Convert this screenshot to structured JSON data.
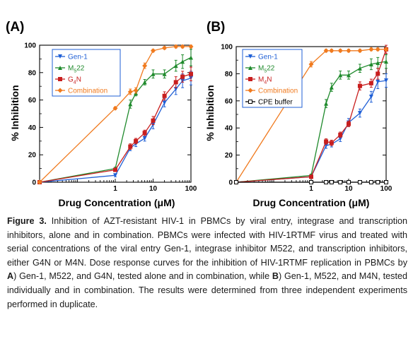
{
  "colors": {
    "gen1": "#1f5fd6",
    "m522": "#1f8a2c",
    "g4n": "#c81e1e",
    "m4n": "#c81e1e",
    "combination": "#f07a1e",
    "cpe": "#000000"
  },
  "panel_a": {
    "label": "(A)",
    "legend": [
      {
        "text": "Gen-1",
        "color": "#1f5fd6",
        "marker": "triangle-down"
      },
      {
        "text": "M",
        "sub": "5",
        "rest": "22",
        "color": "#1f8a2c",
        "marker": "triangle-up"
      },
      {
        "text": "G",
        "sub": "4",
        "rest": "N",
        "color": "#c81e1e",
        "marker": "square"
      },
      {
        "text": "Combination",
        "color": "#f07a1e",
        "marker": "diamond"
      }
    ]
  },
  "panel_b": {
    "label": "(B)",
    "legend": [
      {
        "text": "Gen-1",
        "color": "#1f5fd6",
        "marker": "triangle-down"
      },
      {
        "text": "M",
        "sub": "5",
        "rest": "22",
        "color": "#1f8a2c",
        "marker": "triangle-up"
      },
      {
        "text": "M",
        "sub": "4",
        "rest": "N",
        "color": "#c81e1e",
        "marker": "square"
      },
      {
        "text": "Combination",
        "color": "#f07a1e",
        "marker": "diamond"
      },
      {
        "text": "CPE buffer",
        "color": "#000000",
        "marker": "open-square"
      }
    ]
  },
  "chart_data": [
    {
      "type": "line",
      "panel": "(A)",
      "xlabel": "Drug Concentration (μM)",
      "ylabel": "% Inhibition",
      "xscale": "log",
      "xlim": [
        0.01,
        100
      ],
      "ylim": [
        0,
        100
      ],
      "xticks": [
        1,
        10,
        100
      ],
      "yticks": [
        0,
        20,
        40,
        60,
        80,
        100
      ],
      "legend_position": "top-left",
      "series": [
        {
          "name": "Gen-1",
          "x": [
            0.01,
            1,
            2.5,
            3.5,
            6,
            10,
            20,
            40,
            60,
            100
          ],
          "y": [
            0,
            5,
            25,
            28,
            32,
            42,
            58,
            68,
            74,
            76
          ],
          "err": [
            0,
            1,
            2,
            2,
            2,
            3,
            3,
            4,
            5,
            5
          ]
        },
        {
          "name": "M522",
          "x": [
            0.01,
            1,
            2.5,
            3.5,
            6,
            10,
            20,
            40,
            60,
            100
          ],
          "y": [
            0,
            10,
            57,
            65,
            73,
            79,
            79,
            85,
            88,
            91
          ],
          "err": [
            0,
            1,
            3,
            2,
            2,
            3,
            3,
            4,
            5,
            6
          ]
        },
        {
          "name": "G4N",
          "x": [
            0.01,
            1,
            2.5,
            3.5,
            6,
            10,
            20,
            40,
            60,
            100
          ],
          "y": [
            0,
            9,
            26,
            30,
            36,
            45,
            63,
            73,
            77,
            79
          ],
          "err": [
            0,
            1,
            2,
            2,
            2,
            3,
            3,
            4,
            4,
            5
          ]
        },
        {
          "name": "Combination",
          "x": [
            0.01,
            1,
            2.5,
            3.5,
            6,
            10,
            20,
            40,
            60,
            100
          ],
          "y": [
            0,
            54,
            66,
            67,
            85,
            96,
            98,
            99,
            99,
            99
          ],
          "err": [
            0,
            1,
            2,
            2,
            2,
            1,
            1,
            1,
            1,
            1
          ]
        }
      ]
    },
    {
      "type": "line",
      "panel": "(B)",
      "xlabel": "Drug Concentration (μM)",
      "ylabel": "% Inhibition",
      "xscale": "log",
      "xlim": [
        0.01,
        100
      ],
      "ylim": [
        0,
        100
      ],
      "xticks": [
        1,
        10,
        100
      ],
      "yticks": [
        0,
        20,
        40,
        60,
        80,
        100
      ],
      "legend_position": "top-left",
      "series": [
        {
          "name": "Gen-1",
          "x": [
            0.01,
            1,
            2.5,
            3.5,
            6,
            10,
            20,
            40,
            60,
            100
          ],
          "y": [
            0,
            4,
            27,
            28,
            32,
            44,
            51,
            63,
            74,
            75
          ],
          "err": [
            0,
            1,
            2,
            2,
            2,
            3,
            3,
            4,
            5,
            5
          ]
        },
        {
          "name": "M522",
          "x": [
            0.01,
            1,
            2.5,
            3.5,
            6,
            10,
            20,
            40,
            60,
            100
          ],
          "y": [
            0,
            5,
            58,
            70,
            79,
            79,
            84,
            87,
            88,
            89
          ],
          "err": [
            0,
            1,
            3,
            3,
            3,
            3,
            3,
            4,
            4,
            5
          ]
        },
        {
          "name": "M4N",
          "x": [
            0.01,
            1,
            2.5,
            3.5,
            6,
            10,
            20,
            40,
            60,
            100
          ],
          "y": [
            0,
            4,
            30,
            29,
            35,
            43,
            71,
            73,
            80,
            98
          ],
          "err": [
            0,
            1,
            2,
            2,
            2,
            2,
            3,
            3,
            4,
            3
          ]
        },
        {
          "name": "Combination",
          "x": [
            0.01,
            1,
            2.5,
            3.5,
            6,
            10,
            20,
            40,
            60,
            100
          ],
          "y": [
            0,
            87,
            97,
            97,
            97,
            97,
            97,
            98,
            98,
            98
          ],
          "err": [
            0,
            2,
            1,
            1,
            1,
            1,
            1,
            1,
            1,
            1
          ]
        },
        {
          "name": "CPE buffer",
          "x": [
            0.01,
            1,
            2.5,
            3.5,
            6,
            10,
            20,
            40,
            60,
            100
          ],
          "y": [
            0,
            0,
            0,
            0,
            0,
            0,
            0,
            0,
            0,
            0
          ],
          "err": [
            0,
            0,
            0,
            0,
            0,
            0,
            0,
            0,
            0,
            0
          ]
        }
      ]
    }
  ],
  "caption": {
    "figure_label": "Figure 3.",
    "part1": " Inhibition of AZT-resistant HIV-1 in PBMCs by viral entry, integrase and transcription inhibitors, alone and in combination. PBMCs were infected with HIV-1RTMF virus and treated with serial concentrations of the viral entry Gen-1, integrase inhibitor M522, and transcription inhibitors, either G4N or M4N. Dose response curves for the inhibition of HIV-1RTMF replication in PBMCs by ",
    "a": "A",
    "part2": ") Gen-1, M522, and G4N, tested alone and in combination, while ",
    "b": "B",
    "part3": ") Gen-1, M522, and M4N, tested individually and in combination. The results were determined from three independent experiments performed in duplicate."
  }
}
